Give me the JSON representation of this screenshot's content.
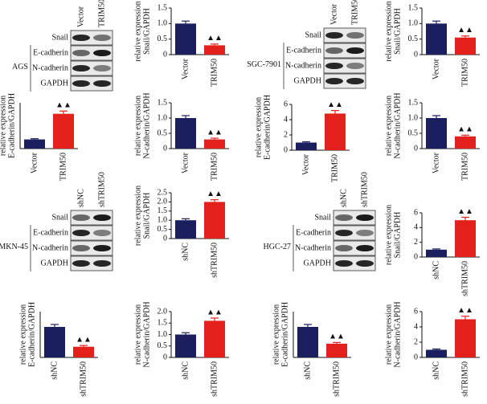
{
  "blots": [
    {
      "cell_line": "AGS",
      "lanes": [
        "Vector",
        "TRIM50"
      ],
      "rows": [
        "Snail",
        "E-cadherin",
        "N-cadherin",
        "GAPDH"
      ]
    },
    {
      "cell_line": "SGC-7901",
      "lanes": [
        "Vector",
        "TRIM50"
      ],
      "rows": [
        "Snail",
        "E-cadherin",
        "N-cadherin",
        "GAPDH"
      ]
    },
    {
      "cell_line": "MKN-45",
      "lanes": [
        "shNC",
        "shTRIM50"
      ],
      "rows": [
        "Snail",
        "E-cadherin",
        "N-cadherin",
        "GAPDH"
      ]
    },
    {
      "cell_line": "HGC-27",
      "lanes": [
        "shNC",
        "shTRIM50"
      ],
      "rows": [
        "Snail",
        "E-cadherin",
        "N-cadherin",
        "GAPDH"
      ]
    }
  ],
  "chart_data": [
    {
      "type": "bar",
      "ylabel": [
        "relative expression",
        "Snail/GAPDH"
      ],
      "categories": [
        "Vector",
        "TRIM50"
      ],
      "values": [
        1.0,
        0.3
      ],
      "errors": [
        0.08,
        0.04
      ],
      "colors": [
        "#1c1f5e",
        "#e3211c"
      ],
      "annotation": "▲▲",
      "ylim": [
        0,
        1.5
      ],
      "yticks": [
        0,
        0.5,
        {
          "value": 1,
          "label": "1.0"
        },
        1.5
      ]
    },
    {
      "type": "bar",
      "ylabel": [
        "relative expression",
        "E-cadherin/GAPDH"
      ],
      "categories": [
        "Vector",
        "TRIM50"
      ],
      "values": [
        1.0,
        3.8
      ],
      "errors": [
        0.08,
        0.3
      ],
      "colors": [
        "#1c1f5e",
        "#e3211c"
      ],
      "annotation": "▲▲",
      "ylim": [
        0,
        5
      ]
    },
    {
      "type": "bar",
      "ylabel": [
        "relative expression",
        "N-cadherin/GAPDH"
      ],
      "categories": [
        "Vector",
        "TRIM50"
      ],
      "values": [
        1.0,
        0.3
      ],
      "errors": [
        0.08,
        0.04
      ],
      "colors": [
        "#1c1f5e",
        "#e3211c"
      ],
      "annotation": "▲▲",
      "ylim": [
        0,
        1.5
      ],
      "yticks": [
        0,
        0.5,
        {
          "value": 1,
          "label": "1.0"
        },
        1.5
      ]
    },
    {
      "type": "bar",
      "ylabel": [
        "relative expression",
        "Snail/GAPDH"
      ],
      "categories": [
        "Vector",
        "TRIM50"
      ],
      "values": [
        1.0,
        0.55
      ],
      "errors": [
        0.08,
        0.05
      ],
      "colors": [
        "#1c1f5e",
        "#e3211c"
      ],
      "annotation": "▲▲",
      "ylim": [
        0,
        1.5
      ],
      "yticks": [
        0,
        0.5,
        {
          "value": 1,
          "label": "1.0"
        },
        1.5
      ]
    },
    {
      "type": "bar",
      "ylabel": [
        "relative expression",
        "E-cadherin/GAPDH"
      ],
      "categories": [
        "Vector",
        "TRIM50"
      ],
      "values": [
        1.0,
        4.8
      ],
      "errors": [
        0.1,
        0.4
      ],
      "colors": [
        "#1c1f5e",
        "#e3211c"
      ],
      "annotation": "▲▲",
      "ylim": [
        0,
        6
      ],
      "yticks": [
        0,
        2,
        4,
        6
      ]
    },
    {
      "type": "bar",
      "ylabel": [
        "relative expression",
        "N-cadherin/GAPDH"
      ],
      "categories": [
        "Vector",
        "TRIM50"
      ],
      "values": [
        1.0,
        0.4
      ],
      "errors": [
        0.08,
        0.04
      ],
      "colors": [
        "#1c1f5e",
        "#e3211c"
      ],
      "annotation": "▲▲",
      "ylim": [
        0,
        1.5
      ],
      "yticks": [
        0,
        0.5,
        {
          "value": 1,
          "label": "1.0"
        },
        1.5
      ]
    },
    {
      "type": "bar",
      "ylabel": [
        "relative expression",
        "Snail/GAPDH"
      ],
      "categories": [
        "shNC",
        "shTRIM50"
      ],
      "values": [
        1.0,
        2.0
      ],
      "errors": [
        0.08,
        0.12
      ],
      "colors": [
        "#1c1f5e",
        "#e3211c"
      ],
      "annotation": "▲▲",
      "ylim": [
        0,
        2.5
      ],
      "yticks": [
        0,
        0.5,
        {
          "value": 1,
          "label": "1.0"
        },
        1.5,
        {
          "value": 2,
          "label": "2.0"
        },
        2.5
      ]
    },
    {
      "type": "bar",
      "ylabel": [
        "relative expression",
        "E-cadherin/GAPDH"
      ],
      "categories": [
        "shNC",
        "shTRIM50"
      ],
      "values": [
        1.0,
        0.35
      ],
      "errors": [
        0.08,
        0.04
      ],
      "colors": [
        "#1c1f5e",
        "#e3211c"
      ],
      "annotation": "▲▲",
      "ylim": [
        0,
        1.5
      ]
    },
    {
      "type": "bar",
      "ylabel": [
        "relative expression",
        "N-cadherin/GAPDH"
      ],
      "categories": [
        "shNC",
        "shTRIM50"
      ],
      "values": [
        1.0,
        1.6
      ],
      "errors": [
        0.08,
        0.12
      ],
      "colors": [
        "#1c1f5e",
        "#e3211c"
      ],
      "annotation": "▲▲",
      "ylim": [
        0,
        2
      ],
      "yticks": [
        0,
        0.5,
        {
          "value": 1,
          "label": "1.0"
        },
        1.5,
        {
          "value": 2,
          "label": "2.0"
        }
      ]
    },
    {
      "type": "bar",
      "ylabel": [
        "relative expression",
        "Snail/GAPDH"
      ],
      "categories": [
        "shNC",
        "shTRIM50"
      ],
      "values": [
        1.0,
        5.0
      ],
      "errors": [
        0.1,
        0.4
      ],
      "colors": [
        "#1c1f5e",
        "#e3211c"
      ],
      "annotation": "▲▲",
      "ylim": [
        0,
        6
      ],
      "yticks": [
        0,
        2,
        4,
        6
      ]
    },
    {
      "type": "bar",
      "ylabel": [
        "relative expression",
        "E-cadherin/GAPDH"
      ],
      "categories": [
        "shNC",
        "shTRIM50"
      ],
      "values": [
        1.0,
        0.45
      ],
      "errors": [
        0.08,
        0.04
      ],
      "colors": [
        "#1c1f5e",
        "#e3211c"
      ],
      "annotation": "▲▲",
      "ylim": [
        0,
        1.5
      ]
    },
    {
      "type": "bar",
      "ylabel": [
        "relative expression",
        "N-cadherin/GAPDH"
      ],
      "categories": [
        "shNC",
        "shTRIM50"
      ],
      "values": [
        1.0,
        5.0
      ],
      "errors": [
        0.1,
        0.4
      ],
      "colors": [
        "#1c1f5e",
        "#e3211c"
      ],
      "annotation": "▲▲",
      "ylim": [
        0,
        6
      ],
      "yticks": [
        0,
        2,
        4,
        6
      ]
    }
  ]
}
